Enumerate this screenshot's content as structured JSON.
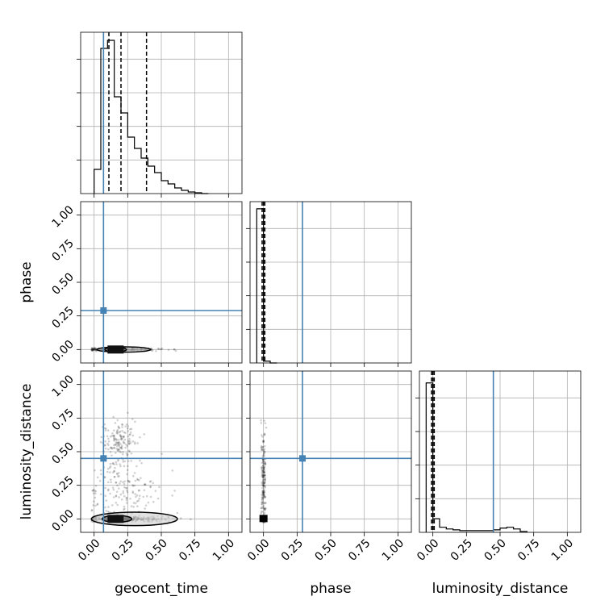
{
  "chart_data": {
    "type": "corner",
    "parameters": [
      "geocent_time",
      "phase",
      "luminosity_distance"
    ],
    "axis_labels": [
      "geocent_time",
      "phase",
      "luminosity_distance"
    ],
    "tick_labels": [
      "0.00",
      "0.25",
      "0.50",
      "0.75",
      "1.00"
    ],
    "tick_values": [
      0,
      0.25,
      0.5,
      0.75,
      1.0
    ],
    "axis_range": [
      -0.1,
      1.1
    ],
    "grid": true,
    "truth_color": "#4682b4",
    "truths": {
      "geocent_time": 0.07,
      "phase": 0.29,
      "luminosity_distance": 0.45
    },
    "histograms": [
      {
        "param": "geocent_time",
        "bin_edges": [
          0.0,
          0.05,
          0.1,
          0.15,
          0.2,
          0.25,
          0.3,
          0.35,
          0.4,
          0.45,
          0.5,
          0.55,
          0.6,
          0.65,
          0.7,
          0.75,
          0.8,
          0.85
        ],
        "counts": [
          0.15,
          0.9,
          0.95,
          0.6,
          0.5,
          0.35,
          0.28,
          0.22,
          0.17,
          0.13,
          0.08,
          0.06,
          0.035,
          0.02,
          0.01,
          0.005,
          0.0
        ],
        "ylim": [
          0,
          1.0
        ],
        "quantiles": [
          0.11,
          0.2,
          0.39
        ]
      },
      {
        "param": "phase",
        "bin_edges": [
          -0.05,
          0.0,
          0.05,
          0.1
        ],
        "counts": [
          0.86,
          0.01,
          0.0
        ],
        "ylim": [
          0,
          0.9
        ],
        "quantiles": [
          -0.01,
          0.0,
          0.01
        ]
      },
      {
        "param": "luminosity_distance",
        "bin_edges": [
          -0.05,
          0.0,
          0.05,
          0.1,
          0.15,
          0.2,
          0.25,
          0.3,
          0.35,
          0.4,
          0.45,
          0.5,
          0.55,
          0.6,
          0.65,
          0.7
        ],
        "counts": [
          0.88,
          0.08,
          0.03,
          0.02,
          0.015,
          0.01,
          0.01,
          0.01,
          0.01,
          0.01,
          0.015,
          0.025,
          0.03,
          0.02,
          0.005
        ],
        "ylim": [
          0,
          0.95
        ],
        "quantiles": [
          -0.01,
          0.0,
          0.01
        ]
      }
    ],
    "scatter_clusters": [
      {
        "panel": "phase_vs_geocent_time",
        "center": [
          0.2,
          0.0
        ],
        "spread": [
          0.15,
          0.005
        ],
        "n": 260,
        "xmax": 0.82
      },
      {
        "panel": "luminosity_distance_vs_geocent_time",
        "center": [
          0.18,
          0.58
        ],
        "spread": [
          0.06,
          0.07
        ],
        "n": 150
      },
      {
        "panel": "luminosity_distance_vs_geocent_time",
        "center": [
          0.2,
          0.2
        ],
        "spread": [
          0.15,
          0.14
        ],
        "n": 200
      },
      {
        "panel": "luminosity_distance_vs_geocent_time",
        "center": [
          0.22,
          0.0
        ],
        "spread": [
          0.18,
          0.01
        ],
        "n": 220,
        "xmax": 0.82
      },
      {
        "panel": "luminosity_distance_vs_phase",
        "center": [
          0.0,
          0.3
        ],
        "spread": [
          0.008,
          0.2
        ],
        "n": 200
      }
    ],
    "contours": [
      {
        "panel": "phase_vs_geocent_time",
        "level": 1,
        "center": [
          0.22,
          0.0
        ],
        "half_width": [
          0.2,
          0.02
        ]
      },
      {
        "panel": "phase_vs_geocent_time",
        "level": 2,
        "center": [
          0.16,
          0.0
        ],
        "half_width": [
          0.08,
          0.012
        ]
      },
      {
        "panel": "luminosity_distance_vs_geocent_time",
        "level": 1,
        "center": [
          0.3,
          0.0
        ],
        "half_width": [
          0.32,
          0.05
        ]
      },
      {
        "panel": "luminosity_distance_vs_geocent_time",
        "level": 2,
        "center": [
          0.17,
          0.0
        ],
        "half_width": [
          0.11,
          0.025
        ]
      }
    ]
  }
}
